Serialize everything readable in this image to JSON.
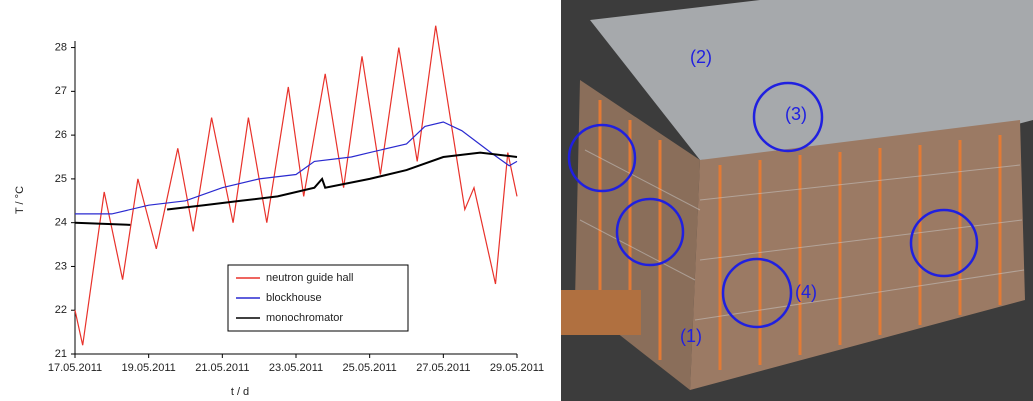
{
  "chart_data": {
    "type": "line",
    "xlabel": "t / d",
    "ylabel": "T / °C",
    "xlim": [
      "2011-05-17",
      "2011-05-29"
    ],
    "xticks": [
      {
        "value": "2011-05-17",
        "label": "17.05.2011"
      },
      {
        "value": "2011-05-19",
        "label": "19.05.2011"
      },
      {
        "value": "2011-05-21",
        "label": "21.05.2011"
      },
      {
        "value": "2011-05-23",
        "label": "23.05.2011"
      },
      {
        "value": "2011-05-25",
        "label": "25.05.2011"
      },
      {
        "value": "2011-05-27",
        "label": "27.05.2011"
      },
      {
        "value": "2011-05-29",
        "label": "29.05.2011"
      }
    ],
    "ylim": [
      21,
      28.15
    ],
    "yticks": [
      21,
      22,
      23,
      24,
      25,
      26,
      27,
      28
    ],
    "legend": "bottom-center",
    "series": [
      {
        "name": "neutron guide hall",
        "color": "#e8322b",
        "x": [
          "2011-05-17T00:00",
          "2011-05-17T05:00",
          "2011-05-17T19:00",
          "2011-05-18T07:00",
          "2011-05-18T17:00",
          "2011-05-19T05:00",
          "2011-05-19T19:00",
          "2011-05-20T05:00",
          "2011-05-20T17:00",
          "2011-05-21T07:00",
          "2011-05-21T17:00",
          "2011-05-22T05:00",
          "2011-05-22T19:00",
          "2011-05-23T05:00",
          "2011-05-23T19:00",
          "2011-05-24T07:00",
          "2011-05-24T19:00",
          "2011-05-25T07:00",
          "2011-05-25T19:00",
          "2011-05-26T07:00",
          "2011-05-26T19:00",
          "2011-05-27T14:00",
          "2011-05-27T20:00",
          "2011-05-28T10:00",
          "2011-05-28T18:00",
          "2011-05-29T00:00"
        ],
        "values": [
          22.0,
          21.2,
          24.7,
          22.7,
          25.0,
          23.4,
          25.7,
          23.8,
          26.4,
          24.0,
          26.4,
          24.0,
          27.1,
          24.6,
          27.4,
          24.8,
          27.8,
          25.1,
          28.0,
          25.4,
          28.5,
          24.3,
          24.8,
          22.6,
          25.6,
          24.6
        ]
      },
      {
        "name": "blockhouse",
        "color": "#2a2ad0",
        "x": [
          "2011-05-17T00:00",
          "2011-05-18T00:00",
          "2011-05-19T00:00",
          "2011-05-20T00:00",
          "2011-05-21T00:00",
          "2011-05-22T00:00",
          "2011-05-23T00:00",
          "2011-05-23T12:00",
          "2011-05-24T12:00",
          "2011-05-25T00:00",
          "2011-05-26T00:00",
          "2011-05-26T12:00",
          "2011-05-27T00:00",
          "2011-05-27T12:00",
          "2011-05-28T07:00",
          "2011-05-28T19:00",
          "2011-05-29T00:00"
        ],
        "values": [
          24.2,
          24.2,
          24.4,
          24.5,
          24.8,
          25.0,
          25.1,
          25.4,
          25.5,
          25.6,
          25.8,
          26.2,
          26.3,
          26.1,
          25.6,
          25.3,
          25.4
        ]
      },
      {
        "name": "monochromator",
        "color": "#000000",
        "x": [
          "2011-05-17T00:00",
          "2011-05-18T12:00",
          "2011-05-19T00:00",
          "2011-05-19T12:00",
          "2011-05-20T12:00",
          "2011-05-21T12:00",
          "2011-05-22T12:00",
          "2011-05-23T12:00",
          "2011-05-23T17:00",
          "2011-05-23T19:00",
          "2011-05-25T00:00",
          "2011-05-26T00:00",
          "2011-05-27T00:00",
          "2011-05-28T00:00",
          "2011-05-29T00:00"
        ],
        "values": [
          24.0,
          23.95,
          null,
          24.3,
          24.4,
          24.5,
          24.6,
          24.8,
          25.0,
          24.8,
          25.0,
          25.2,
          25.5,
          25.6,
          25.5
        ]
      }
    ]
  },
  "photo": {
    "labels": [
      "(1)",
      "(2)",
      "(3)",
      "(4)"
    ]
  }
}
